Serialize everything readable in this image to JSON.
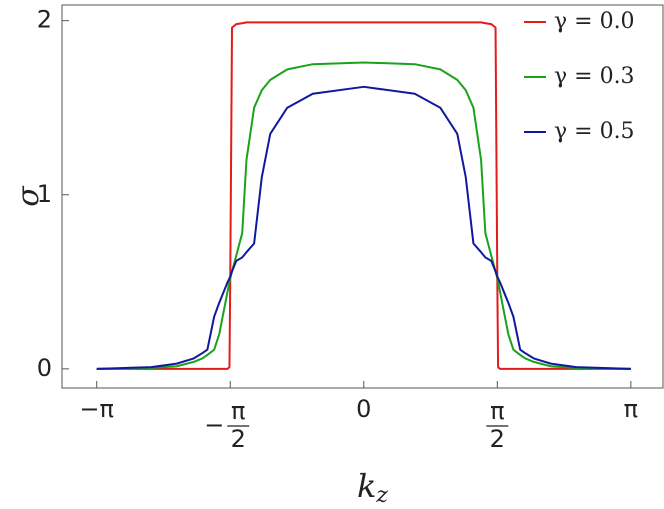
{
  "chart_data": {
    "type": "line",
    "x_label": "kz",
    "y_label": "σ",
    "x": [
      -3.1416,
      -2.5,
      -2.2,
      -2.0,
      -1.9,
      -1.84,
      -1.76,
      -1.7,
      -1.6,
      -1.58,
      -1.571,
      -1.55,
      -1.5,
      -1.43,
      -1.38,
      -1.29,
      -1.2,
      -1.1,
      -0.9,
      -0.6,
      0,
      0.6,
      0.9,
      1.1,
      1.2,
      1.29,
      1.38,
      1.43,
      1.5,
      1.55,
      1.571,
      1.58,
      1.6,
      1.7,
      1.76,
      1.84,
      1.9,
      2.0,
      2.2,
      2.5,
      3.1416
    ],
    "series": [
      {
        "name": "γ = 0.0",
        "color": "#e41a1c",
        "values": [
          0,
          0,
          0,
          0,
          0,
          0,
          0,
          0,
          0,
          0.01,
          0.5,
          1.96,
          1.98,
          1.985,
          1.99,
          1.99,
          1.99,
          1.99,
          1.99,
          1.99,
          1.99,
          1.99,
          1.99,
          1.99,
          1.99,
          1.99,
          1.99,
          1.985,
          1.98,
          1.96,
          0.5,
          0.01,
          0,
          0,
          0,
          0,
          0,
          0,
          0,
          0,
          0
        ]
      },
      {
        "name": "γ = 0.3",
        "color": "#1aa31a",
        "values": [
          0,
          0.005,
          0.015,
          0.04,
          0.06,
          0.08,
          0.11,
          0.2,
          0.45,
          0.5,
          0.52,
          0.56,
          0.65,
          0.78,
          1.2,
          1.5,
          1.6,
          1.66,
          1.72,
          1.75,
          1.76,
          1.75,
          1.72,
          1.66,
          1.6,
          1.5,
          1.2,
          0.78,
          0.65,
          0.56,
          0.52,
          0.5,
          0.45,
          0.2,
          0.11,
          0.08,
          0.06,
          0.04,
          0.015,
          0.005,
          0
        ]
      },
      {
        "name": "γ = 0.5",
        "color": "#10189e",
        "values": [
          0,
          0.01,
          0.03,
          0.06,
          0.09,
          0.11,
          0.3,
          0.38,
          0.5,
          0.52,
          0.53,
          0.56,
          0.62,
          0.64,
          0.67,
          0.72,
          1.1,
          1.35,
          1.5,
          1.58,
          1.62,
          1.58,
          1.5,
          1.35,
          1.1,
          0.72,
          0.67,
          0.64,
          0.62,
          0.56,
          0.53,
          0.52,
          0.5,
          0.38,
          0.3,
          0.11,
          0.09,
          0.06,
          0.03,
          0.01,
          0
        ]
      }
    ],
    "xlim": [
      -3.55,
      3.52
    ],
    "ylim": [
      -0.11,
      2.09
    ],
    "xticks": [
      {
        "value": -3.1416,
        "label": "−π"
      },
      {
        "value": -1.5708,
        "label": "−π/2"
      },
      0,
      {
        "value": 1.5708,
        "label": "π/2"
      },
      {
        "value": 3.1416,
        "label": "π"
      }
    ],
    "yticks": [
      0,
      1,
      2
    ],
    "legend": "top-right"
  }
}
